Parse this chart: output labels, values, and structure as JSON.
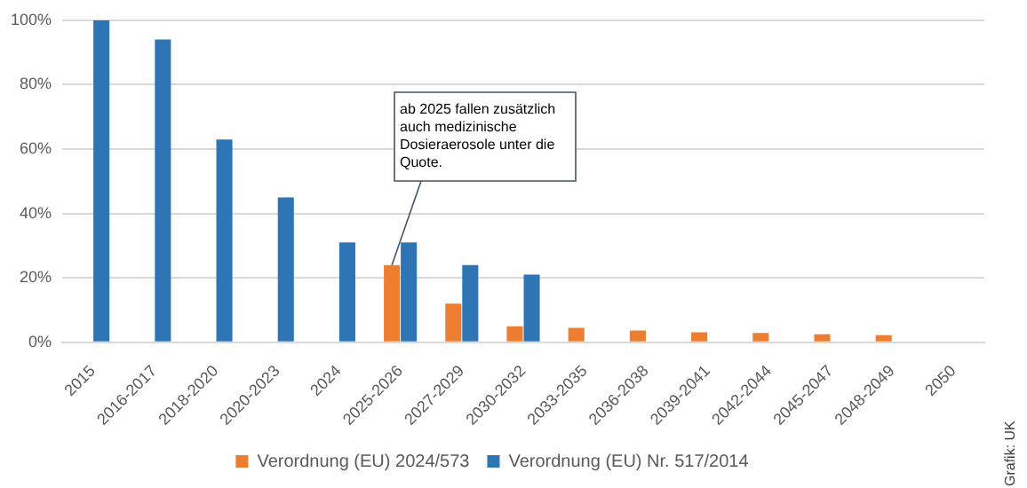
{
  "chart_data": {
    "type": "bar",
    "categories": [
      "2015",
      "2016-2017",
      "2018-2020",
      "2020-2023",
      "2024",
      "2025-2026",
      "2027-2029",
      "2030-2032",
      "2033-2035",
      "2036-2038",
      "2039-2041",
      "2042-2044",
      "2045-2047",
      "2048-2049",
      "2050"
    ],
    "series": [
      {
        "name": "Verordnung (EU) 2024/573",
        "color": "#ed7d31",
        "values": [
          null,
          null,
          null,
          null,
          null,
          24,
          12,
          5,
          4.5,
          3.7,
          3.1,
          2.9,
          2.5,
          2.2,
          null
        ]
      },
      {
        "name": "Verordnung (EU) Nr. 517/2014",
        "color": "#2e75b6",
        "values": [
          100,
          94,
          63,
          45,
          31,
          31,
          24,
          21,
          null,
          null,
          null,
          null,
          null,
          null,
          null
        ]
      }
    ],
    "ylim": [
      0,
      100
    ],
    "yticks": [
      {
        "value": 0,
        "label": "0%"
      },
      {
        "value": 20,
        "label": "20%"
      },
      {
        "value": 40,
        "label": "40%"
      },
      {
        "value": 60,
        "label": "60%"
      },
      {
        "value": 80,
        "label": "80%"
      },
      {
        "value": 100,
        "label": "100%"
      }
    ],
    "grid": "y",
    "legend": "bottom",
    "annotations": [
      {
        "text": "ab 2025 fallen zusätzlich auch medizinische Dosieraerosole unter die Quote.",
        "x": "2025-2026",
        "y": 24
      },
      "Grafik: UK"
    ]
  }
}
